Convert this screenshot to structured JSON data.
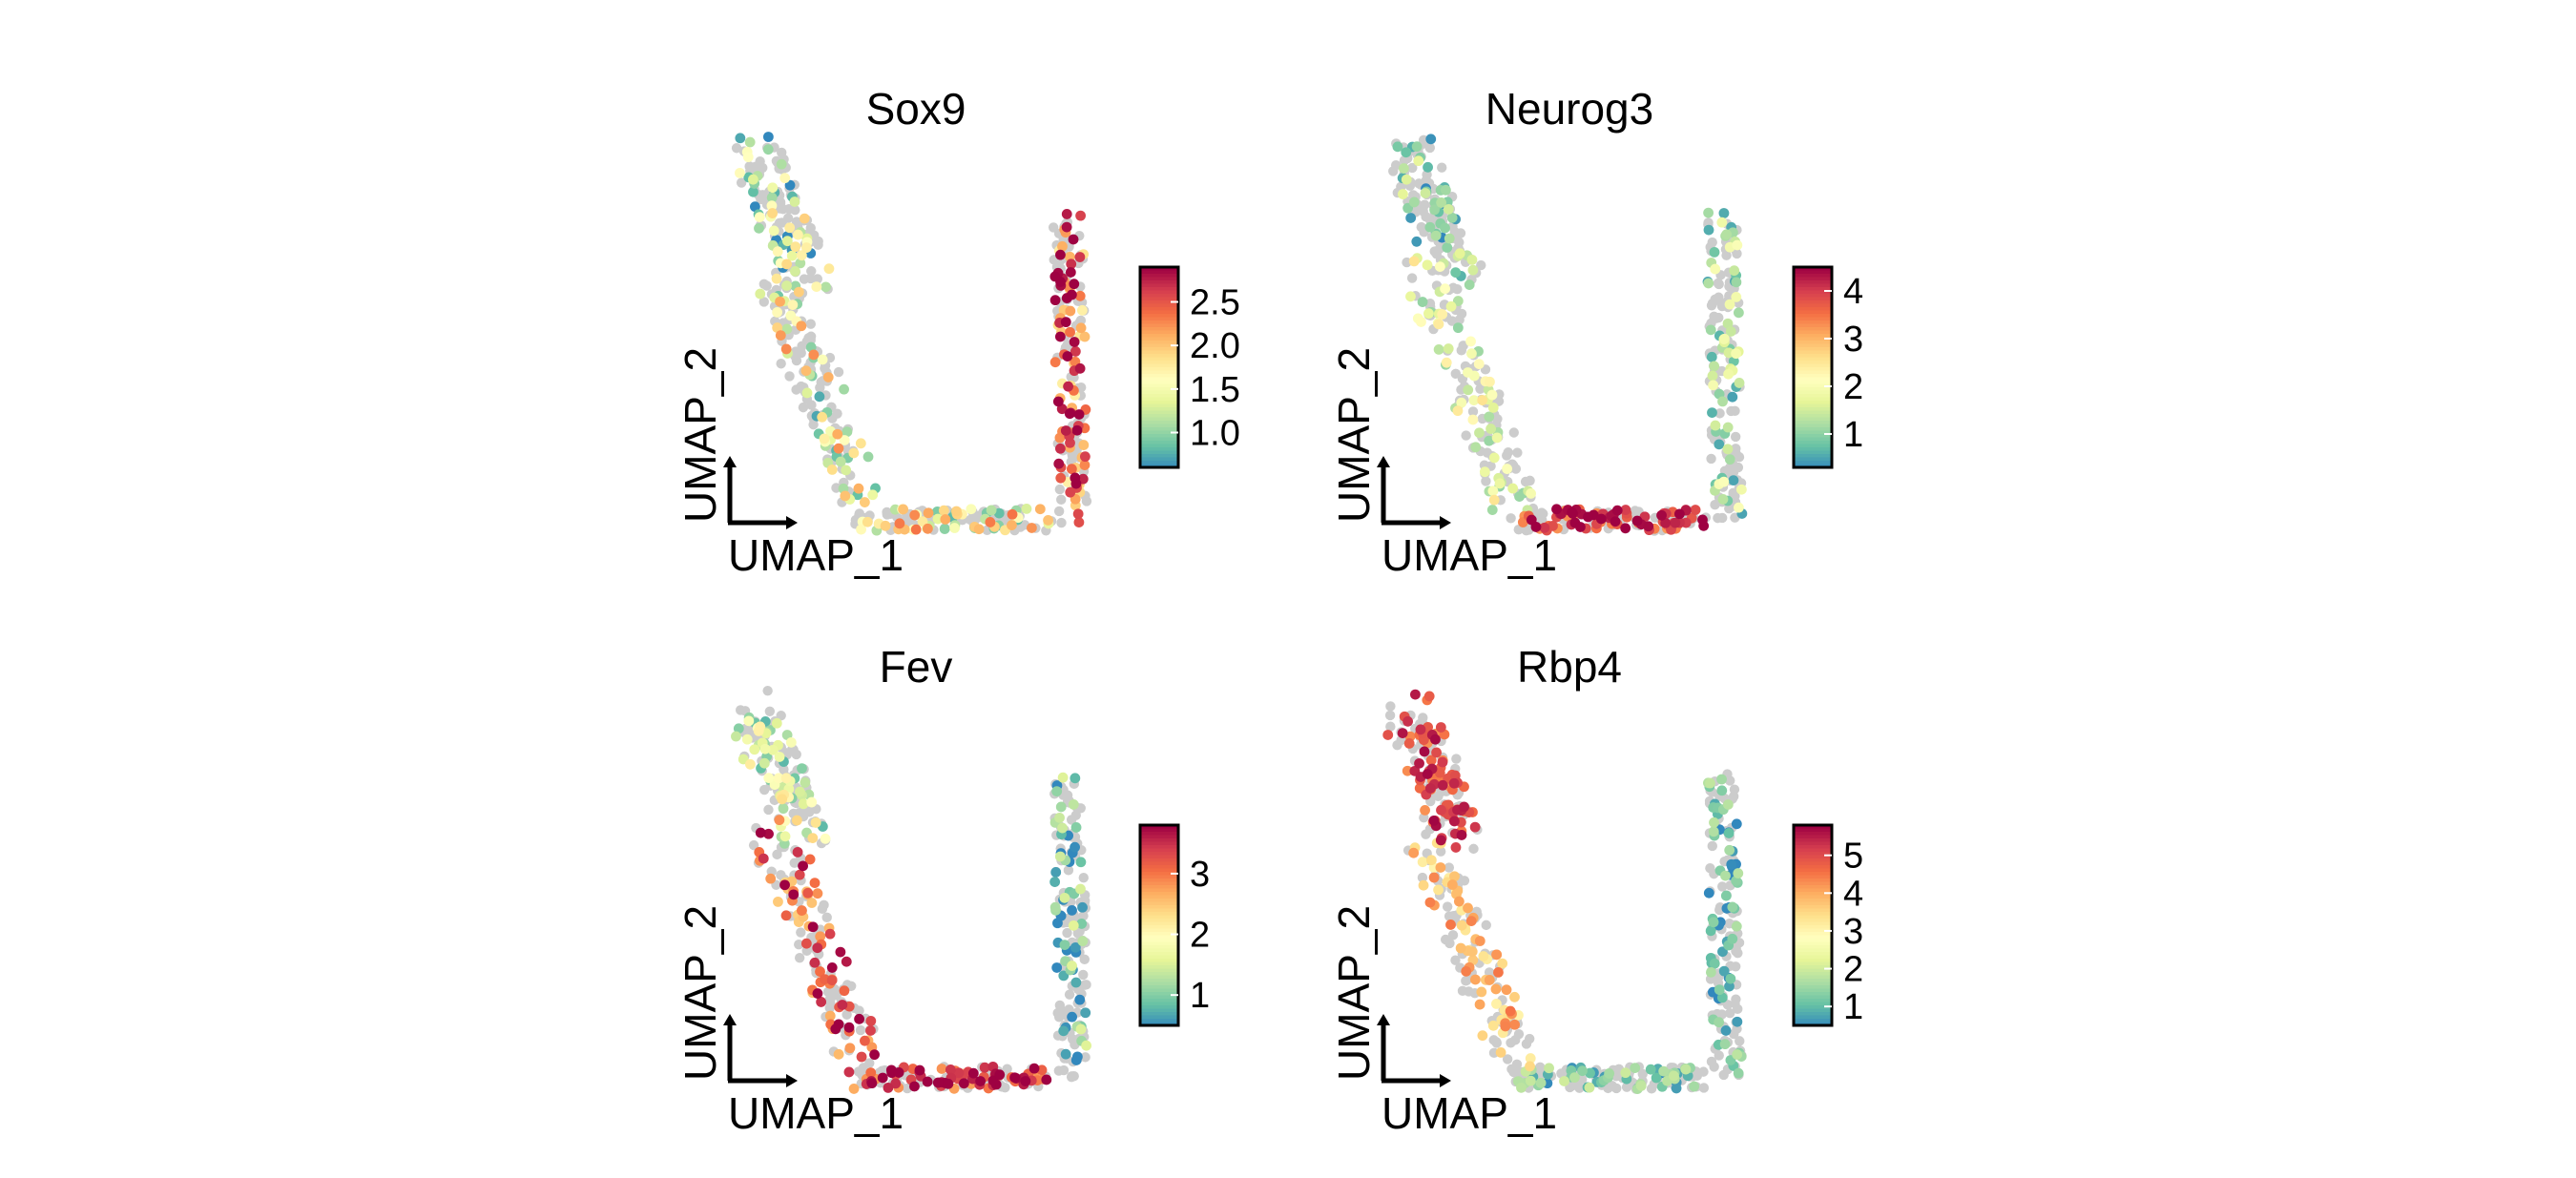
{
  "chart_data": [
    {
      "type": "scatter",
      "title": "Sox9",
      "xlabel": "UMAP_1",
      "ylabel": "UMAP_2",
      "colorbar": {
        "ticks": [
          "1.0",
          "1.5",
          "2.0",
          "2.5"
        ],
        "range": [
          0.6,
          2.9
        ],
        "palette": "Spectral"
      },
      "expression_by_region": {
        "top-left-arm": 1.2,
        "left-diagonal": 1.5,
        "bottom-curve": 1.6,
        "right-arm": 2.5
      }
    },
    {
      "type": "scatter",
      "title": "Neurog3",
      "xlabel": "UMAP_1",
      "ylabel": "UMAP_2",
      "colorbar": {
        "ticks": [
          "1",
          "2",
          "3",
          "4"
        ],
        "range": [
          0.3,
          4.5
        ],
        "palette": "Spectral"
      },
      "expression_by_region": {
        "top-left-arm": 1.0,
        "left-diagonal": 1.8,
        "bottom-curve": 4.0,
        "right-arm": 1.3
      }
    },
    {
      "type": "scatter",
      "title": "Fev",
      "xlabel": "UMAP_1",
      "ylabel": "UMAP_2",
      "colorbar": {
        "ticks": [
          "1",
          "2",
          "3"
        ],
        "range": [
          0.5,
          3.8
        ],
        "palette": "Spectral"
      },
      "expression_by_region": {
        "top-left-arm": 1.6,
        "left-diagonal": 3.2,
        "bottom-curve": 3.5,
        "right-arm": 0.8
      }
    },
    {
      "type": "scatter",
      "title": "Rbp4",
      "xlabel": "UMAP_1",
      "ylabel": "UMAP_2",
      "colorbar": {
        "ticks": [
          "1",
          "2",
          "3",
          "4",
          "5"
        ],
        "range": [
          0.5,
          5.8
        ],
        "palette": "Spectral"
      },
      "expression_by_region": {
        "top-left-arm": 5.0,
        "left-diagonal": 3.8,
        "bottom-curve": 1.3,
        "right-arm": 1.1
      }
    }
  ],
  "colors": {
    "not_expressed": "#cccccc",
    "palette_low": "#3b5aa7",
    "palette_mid": "#ffffbf",
    "palette_high": "#a4133c"
  }
}
